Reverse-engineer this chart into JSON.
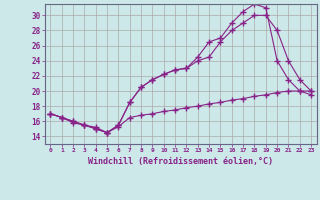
{
  "xlabel": "Windchill (Refroidissement éolien,°C)",
  "background_color": "#cce8e8",
  "grid_color": "#aaaaaa",
  "line_color": "#882288",
  "x_ticks": [
    0,
    1,
    2,
    3,
    4,
    5,
    6,
    7,
    8,
    9,
    10,
    11,
    12,
    13,
    14,
    15,
    16,
    17,
    18,
    19,
    20,
    21,
    22,
    23
  ],
  "y_ticks": [
    14,
    16,
    18,
    20,
    22,
    24,
    26,
    28,
    30
  ],
  "xlim": [
    -0.5,
    23.5
  ],
  "ylim": [
    13.0,
    31.5
  ],
  "series1_x": [
    0,
    1,
    2,
    3,
    4,
    5,
    6,
    7,
    8,
    9,
    10,
    11,
    12,
    13,
    14,
    15,
    16,
    17,
    18,
    19,
    20,
    21,
    22,
    23
  ],
  "series1_y": [
    17.0,
    16.5,
    16.0,
    15.5,
    15.0,
    14.5,
    15.5,
    18.5,
    20.5,
    21.5,
    22.2,
    22.8,
    23.0,
    24.0,
    24.5,
    26.5,
    28.0,
    29.0,
    30.0,
    30.0,
    28.0,
    24.0,
    21.5,
    20.0
  ],
  "series2_x": [
    0,
    1,
    2,
    3,
    4,
    5,
    6,
    7,
    8,
    9,
    10,
    11,
    12,
    13,
    14,
    15,
    16,
    17,
    18,
    19,
    20,
    21,
    22,
    23
  ],
  "series2_y": [
    17.0,
    16.5,
    16.0,
    15.5,
    15.0,
    14.5,
    15.5,
    18.5,
    20.5,
    21.5,
    22.2,
    22.8,
    23.0,
    24.5,
    26.5,
    27.0,
    29.0,
    30.5,
    31.5,
    31.0,
    24.0,
    21.5,
    20.0,
    19.5
  ],
  "series3_x": [
    0,
    1,
    2,
    3,
    4,
    5,
    6,
    7,
    8,
    9,
    10,
    11,
    12,
    13,
    14,
    15,
    16,
    17,
    18,
    19,
    20,
    21,
    22,
    23
  ],
  "series3_y": [
    17.0,
    16.5,
    15.8,
    15.5,
    15.2,
    14.5,
    15.3,
    16.5,
    16.8,
    17.0,
    17.3,
    17.5,
    17.8,
    18.0,
    18.3,
    18.5,
    18.8,
    19.0,
    19.3,
    19.5,
    19.8,
    20.0,
    20.0,
    20.0
  ]
}
